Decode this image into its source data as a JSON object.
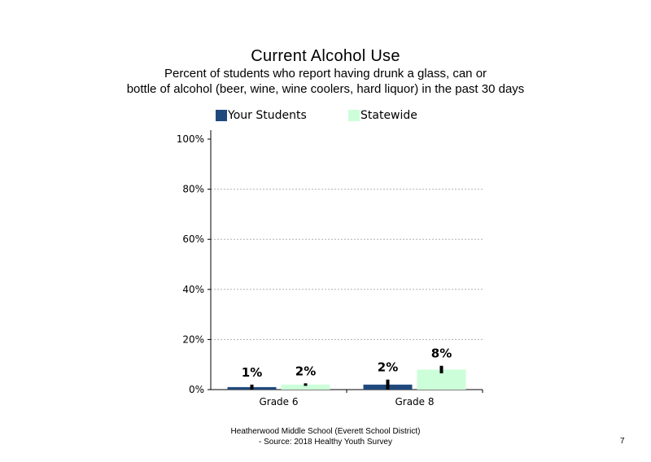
{
  "slide": {
    "title": "Current  Alcohol Use",
    "subtitle_line1": "Percent of students who report having drunk a glass, can or",
    "subtitle_line2": "bottle  of alcohol (beer, wine, wine coolers, hard liquor)  in the past 30 days",
    "footer_line1": "Heatherwood Middle School (Everett School District)",
    "footer_line2": "- Source: 2018 Healthy  Youth Survey",
    "page_number": "7"
  },
  "chart_data": {
    "type": "bar",
    "categories": [
      "Grade 6",
      "Grade 8"
    ],
    "series": [
      {
        "name": "Your Students",
        "values": [
          1,
          2
        ],
        "labels": [
          "1%",
          "2%"
        ],
        "error": [
          1,
          2
        ],
        "color": "#1f497d"
      },
      {
        "name": "Statewide",
        "values": [
          2,
          8
        ],
        "labels": [
          "2%",
          "8%"
        ],
        "error": [
          0.5,
          1.5
        ],
        "color": "#ccffd9"
      }
    ],
    "ylim": [
      0,
      100
    ],
    "yticks": [
      0,
      20,
      40,
      60,
      80,
      100
    ],
    "ytick_labels": [
      "0%",
      "20%",
      "40%",
      "60%",
      "80%",
      "100%"
    ],
    "grid": true,
    "legend_position": "top"
  }
}
